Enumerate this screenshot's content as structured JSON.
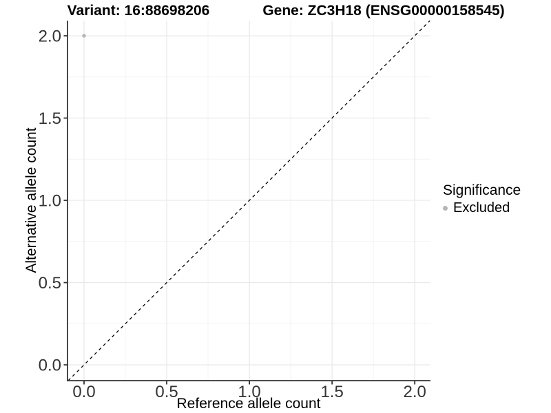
{
  "chart_data": {
    "type": "scatter",
    "title_left": "Variant: 16:88698206",
    "title_right": "Gene: ZC3H18 (ENSG00000158545)",
    "xlabel": "Reference allele count",
    "ylabel": "Alternative allele count",
    "xlim": [
      -0.1,
      2.095
    ],
    "ylim": [
      -0.096,
      2.092
    ],
    "x_ticks": {
      "values": [
        0,
        0.5,
        1,
        1.5,
        2
      ],
      "labels": [
        "0.0",
        "0.5",
        "1.0",
        "1.5",
        "2.0"
      ]
    },
    "y_ticks": {
      "values": [
        0,
        0.5,
        1,
        1.5,
        2
      ],
      "labels": [
        "0.0",
        "0.5",
        "1.0",
        "1.5",
        "2.0"
      ]
    },
    "grid": {
      "major": true,
      "minor": true,
      "major_color": "#e9e9e9",
      "minor_color": "#f4f4f4"
    },
    "reference_line": {
      "type": "identity y=x",
      "style": "dashed",
      "color": "#000000"
    },
    "points": [
      {
        "x": 0.0,
        "y": 2.0,
        "significance": "Excluded",
        "color": "#b5b5b5"
      }
    ],
    "legend": {
      "title": "Significance",
      "position": "right",
      "items": [
        {
          "label": "Excluded",
          "color": "#b5b5b5",
          "marker": "dot"
        }
      ]
    },
    "axis_color": "#333333",
    "text_color": "#333333"
  }
}
